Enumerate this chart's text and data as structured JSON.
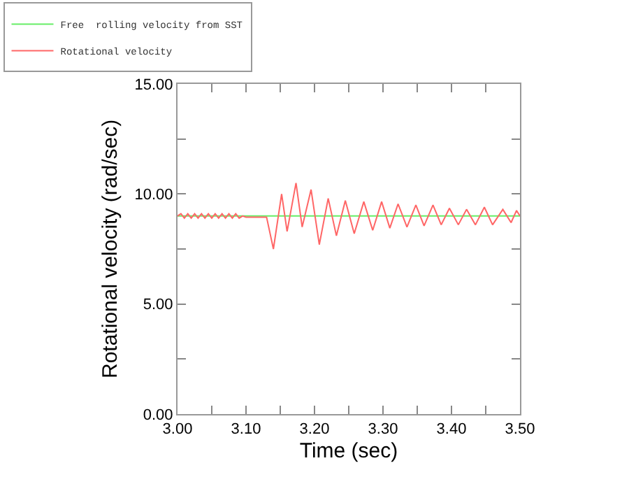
{
  "chart_data": {
    "type": "line",
    "xlabel": "Time (sec)",
    "ylabel": "Rotational velocity (rad/sec)",
    "xlim": [
      3.0,
      3.5
    ],
    "ylim": [
      0,
      15
    ],
    "xticks": [
      {
        "value": 3.0,
        "label": "3.00"
      },
      {
        "value": 3.05,
        "label": null
      },
      {
        "value": 3.1,
        "label": "3.10"
      },
      {
        "value": 3.15,
        "label": null
      },
      {
        "value": 3.2,
        "label": "3.20"
      },
      {
        "value": 3.25,
        "label": null
      },
      {
        "value": 3.3,
        "label": "3.30"
      },
      {
        "value": 3.35,
        "label": null
      },
      {
        "value": 3.4,
        "label": "3.40"
      },
      {
        "value": 3.45,
        "label": null
      },
      {
        "value": 3.5,
        "label": "3.50"
      }
    ],
    "yticks": [
      {
        "value": 0,
        "label": "0.00"
      },
      {
        "value": 2.5,
        "label": null
      },
      {
        "value": 5,
        "label": "5.00"
      },
      {
        "value": 7.5,
        "label": null
      },
      {
        "value": 10,
        "label": "10.00"
      },
      {
        "value": 12.5,
        "label": null
      },
      {
        "value": 15,
        "label": "15.00"
      }
    ],
    "legend": "top left",
    "marker": "none",
    "line_style": "solid",
    "series": [
      {
        "name": "Free  rolling velocity from SST",
        "color": "#66ee66",
        "x": [
          3.0,
          3.5
        ],
        "values": [
          9.0,
          9.0
        ]
      },
      {
        "name": "Rotational velocity",
        "color": "#ff6666",
        "x": [
          3.0,
          3.005,
          3.01,
          3.015,
          3.02,
          3.025,
          3.03,
          3.035,
          3.04,
          3.045,
          3.05,
          3.055,
          3.06,
          3.065,
          3.07,
          3.075,
          3.08,
          3.085,
          3.09,
          3.095,
          3.1,
          3.13,
          3.14,
          3.152,
          3.16,
          3.173,
          3.182,
          3.195,
          3.207,
          3.22,
          3.232,
          3.245,
          3.258,
          3.272,
          3.285,
          3.298,
          3.31,
          3.322,
          3.335,
          3.348,
          3.36,
          3.373,
          3.385,
          3.397,
          3.41,
          3.422,
          3.435,
          3.448,
          3.46,
          3.475,
          3.487,
          3.495,
          3.5
        ],
        "values": [
          9.0,
          9.1,
          8.9,
          9.1,
          8.9,
          9.1,
          8.9,
          9.1,
          8.9,
          9.1,
          8.9,
          9.1,
          8.9,
          9.1,
          8.9,
          9.1,
          8.9,
          9.1,
          8.9,
          9.0,
          8.95,
          8.95,
          7.5,
          10.0,
          8.3,
          10.5,
          8.5,
          10.2,
          7.7,
          9.8,
          8.1,
          9.7,
          8.2,
          9.65,
          8.35,
          9.65,
          8.45,
          9.55,
          8.5,
          9.5,
          8.55,
          9.5,
          8.6,
          9.35,
          8.6,
          9.3,
          8.6,
          9.4,
          8.6,
          9.3,
          8.7,
          9.25,
          9.0
        ]
      }
    ]
  }
}
